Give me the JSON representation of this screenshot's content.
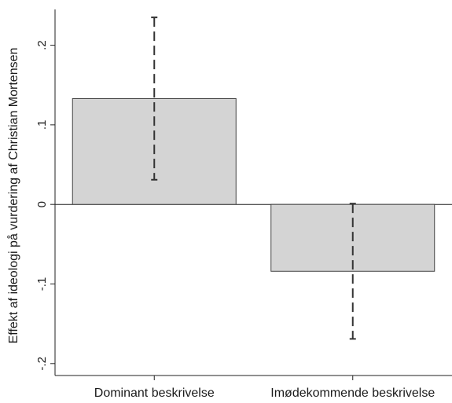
{
  "chart_data": {
    "type": "bar",
    "title": "",
    "xlabel": "",
    "ylabel": "Effekt af ideologi på vurdering af Christian Mortensen",
    "categories": [
      "Dominant beskrivelse",
      "Imødekommende beskrivelse"
    ],
    "values": [
      0.133,
      -0.084
    ],
    "ci_low": [
      0.031,
      -0.169
    ],
    "ci_high": [
      0.235,
      0.001
    ],
    "ylim": [
      -0.215,
      0.245
    ],
    "yticks": [
      -0.2,
      -0.1,
      0,
      0.1,
      0.2
    ],
    "ytick_labels": [
      "-.2",
      "-.1",
      "0",
      ".1",
      ".2"
    ],
    "grid": false,
    "colors": {
      "bar_fill": "#d4d4d4",
      "bar_stroke": "#444444",
      "error_bar": "#333333",
      "axis": "#222222"
    }
  }
}
